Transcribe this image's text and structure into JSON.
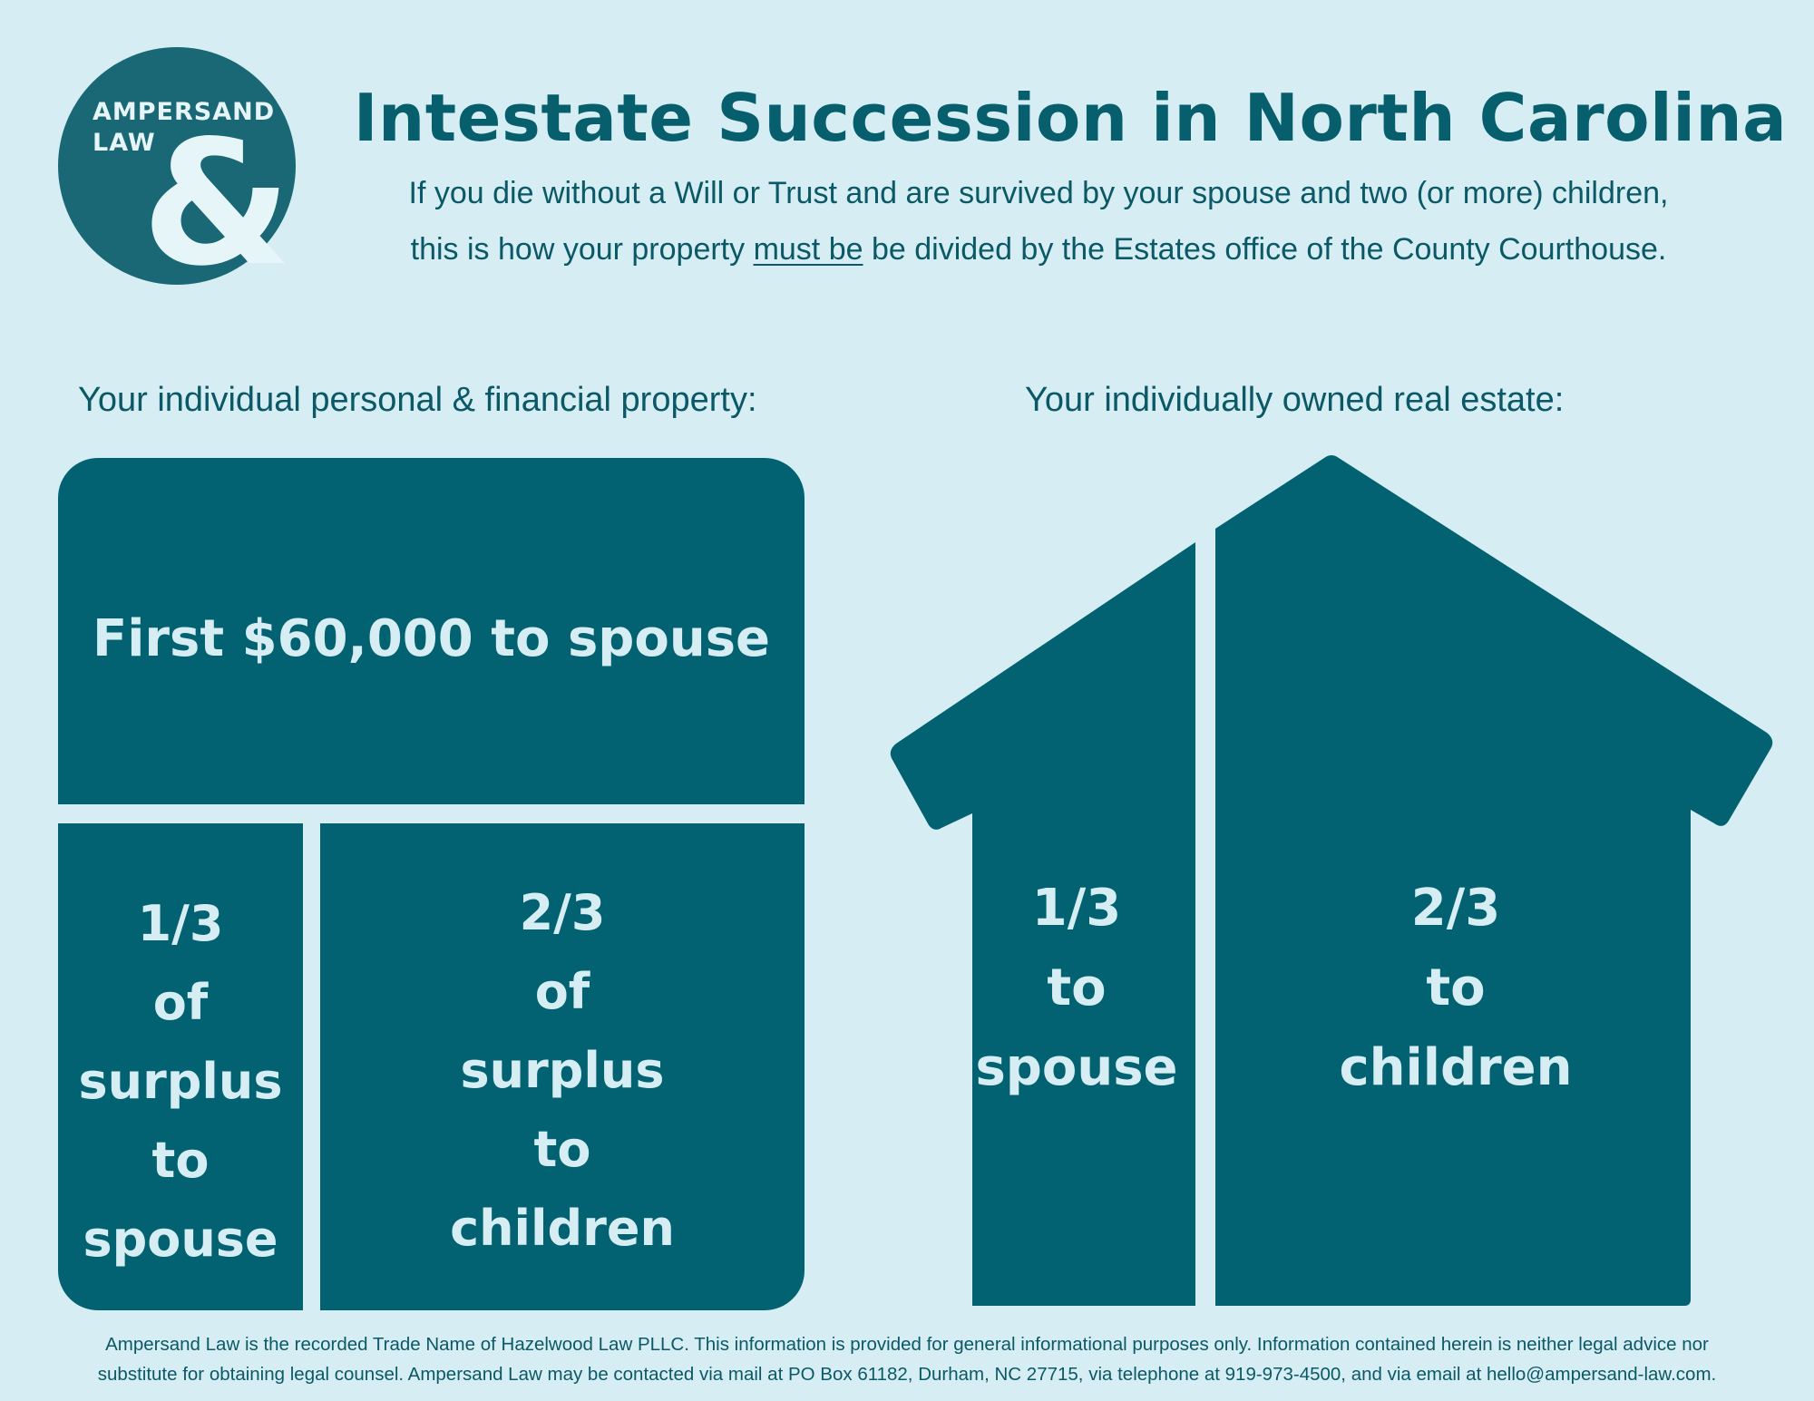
{
  "logo": {
    "line1": "AMPERSAND",
    "line2": "LAW",
    "symbol": "&"
  },
  "header": {
    "title": "Intestate Succession in North Carolina",
    "subtitle_line1": "If you die without a Will or Trust and are survived by your spouse and two (or more) children,",
    "subtitle_line2_before": "this is how your property ",
    "subtitle_line2_underlined": "must be",
    "subtitle_line2_after": " be divided by the Estates office of the County Courthouse."
  },
  "personal_property": {
    "label": "Your individual personal & financial property:",
    "top_share": "First $60,000 to spouse",
    "spouse_share_lines": [
      "1/3",
      "of",
      "surplus",
      "to",
      "spouse"
    ],
    "children_share_lines": [
      "2/3",
      "of",
      "surplus",
      "to",
      "children"
    ]
  },
  "real_estate": {
    "label": "Your individually owned real estate:",
    "spouse_share_lines": [
      "1/3",
      "to",
      "spouse"
    ],
    "children_share_lines": [
      "2/3",
      "to",
      "children"
    ]
  },
  "footer": {
    "line1": "Ampersand Law is the recorded Trade Name of Hazelwood Law PLLC. This information is provided for general informational purposes only. Information contained herein is neither legal advice nor",
    "line2": "substitute for obtaining legal counsel. Ampersand Law may be contacted via mail at PO Box 61182, Durham, NC 27715, via telephone at 919-973-4500, and via email at hello@ampersand-law.com."
  },
  "colors": {
    "background": "#d6eef3",
    "primary": "#036272",
    "logo": "#1a6875",
    "text_light": "#d6eef3"
  }
}
